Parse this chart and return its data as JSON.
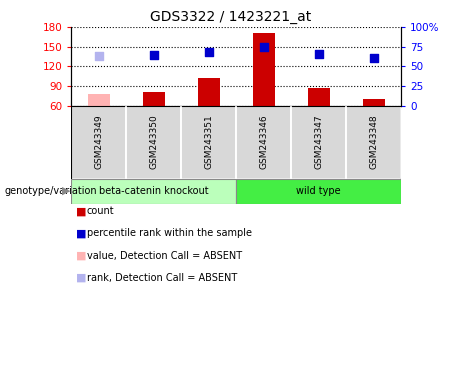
{
  "title": "GDS3322 / 1423221_at",
  "samples": [
    "GSM243349",
    "GSM243350",
    "GSM243351",
    "GSM243346",
    "GSM243347",
    "GSM243348"
  ],
  "bar_values": [
    78,
    80,
    102,
    170,
    87,
    70
  ],
  "bar_absent": [
    true,
    false,
    false,
    false,
    false,
    false
  ],
  "dot_values": [
    135,
    137,
    141,
    149,
    138,
    132
  ],
  "dot_absent": [
    true,
    false,
    false,
    false,
    false,
    false
  ],
  "ylim_left": [
    60,
    180
  ],
  "ylim_right": [
    0,
    100
  ],
  "yticks_left": [
    60,
    90,
    120,
    150,
    180
  ],
  "yticks_right": [
    0,
    25,
    50,
    75,
    100
  ],
  "ytick_labels_right": [
    "0",
    "25",
    "50",
    "75",
    "100%"
  ],
  "bar_color_present": "#cc0000",
  "bar_color_absent": "#ffb3b3",
  "dot_color_present": "#0000cc",
  "dot_color_absent": "#b3b3ee",
  "group_labels": [
    "beta-catenin knockout",
    "wild type"
  ],
  "group_color_1": "#bbffbb",
  "group_color_2": "#44ee44",
  "legend_items": [
    {
      "label": "count",
      "color": "#cc0000"
    },
    {
      "label": "percentile rank within the sample",
      "color": "#0000cc"
    },
    {
      "label": "value, Detection Call = ABSENT",
      "color": "#ffb3b3"
    },
    {
      "label": "rank, Detection Call = ABSENT",
      "color": "#b3b3ee"
    }
  ],
  "bar_width": 0.4,
  "dot_size": 40
}
